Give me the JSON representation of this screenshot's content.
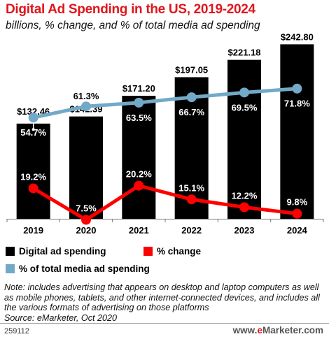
{
  "header": {
    "title": "Digital Ad Spending in the US, 2019-2024",
    "subtitle": "billions, % change, and % of total media ad spending"
  },
  "legend": {
    "items": [
      {
        "label": "Digital ad spending",
        "color": "#000000"
      },
      {
        "label": "% change",
        "color": "#ff0000"
      },
      {
        "label": "% of total media ad spending",
        "color": "#72a9c8"
      }
    ]
  },
  "note": {
    "text": "Note: includes advertising that appears on desktop and laptop computers as well as mobile phones, tablets, and other internet-connected devices, and includes all the various formats of advertising on those platforms",
    "source": "Source: eMarketer, Oct 2020"
  },
  "footer": {
    "id": "259112",
    "brand_prefix": "www.",
    "brand_e": "e",
    "brand_rest": "Marketer.com"
  },
  "chart_data": {
    "type": "bar",
    "categories": [
      "2019",
      "2020",
      "2021",
      "2022",
      "2023",
      "2024"
    ],
    "series": [
      {
        "name": "Digital ad spending",
        "type": "bar",
        "color": "#000000",
        "values": [
          132.46,
          142.39,
          171.2,
          197.05,
          221.18,
          242.8
        ],
        "labels": [
          "$132.46",
          "$142.39",
          "$171.20",
          "$197.05",
          "$221.18",
          "$242.80"
        ]
      },
      {
        "name": "% change",
        "type": "line",
        "color": "#ff0000",
        "values": [
          19.2,
          7.5,
          20.2,
          15.1,
          12.2,
          9.8
        ],
        "labels": [
          "19.2%",
          "7.5%",
          "20.2%",
          "15.1%",
          "12.2%",
          "9.8%"
        ]
      },
      {
        "name": "% of total media ad spending",
        "type": "line",
        "color": "#72a9c8",
        "values": [
          54.7,
          61.3,
          63.5,
          66.7,
          69.5,
          71.8
        ],
        "labels": [
          "54.7%",
          "61.3%",
          "63.5%",
          "66.7%",
          "69.5%",
          "71.8%"
        ]
      }
    ],
    "bar_ylim": [
      0,
      250
    ],
    "grid": false,
    "legend_position": "bottom"
  }
}
